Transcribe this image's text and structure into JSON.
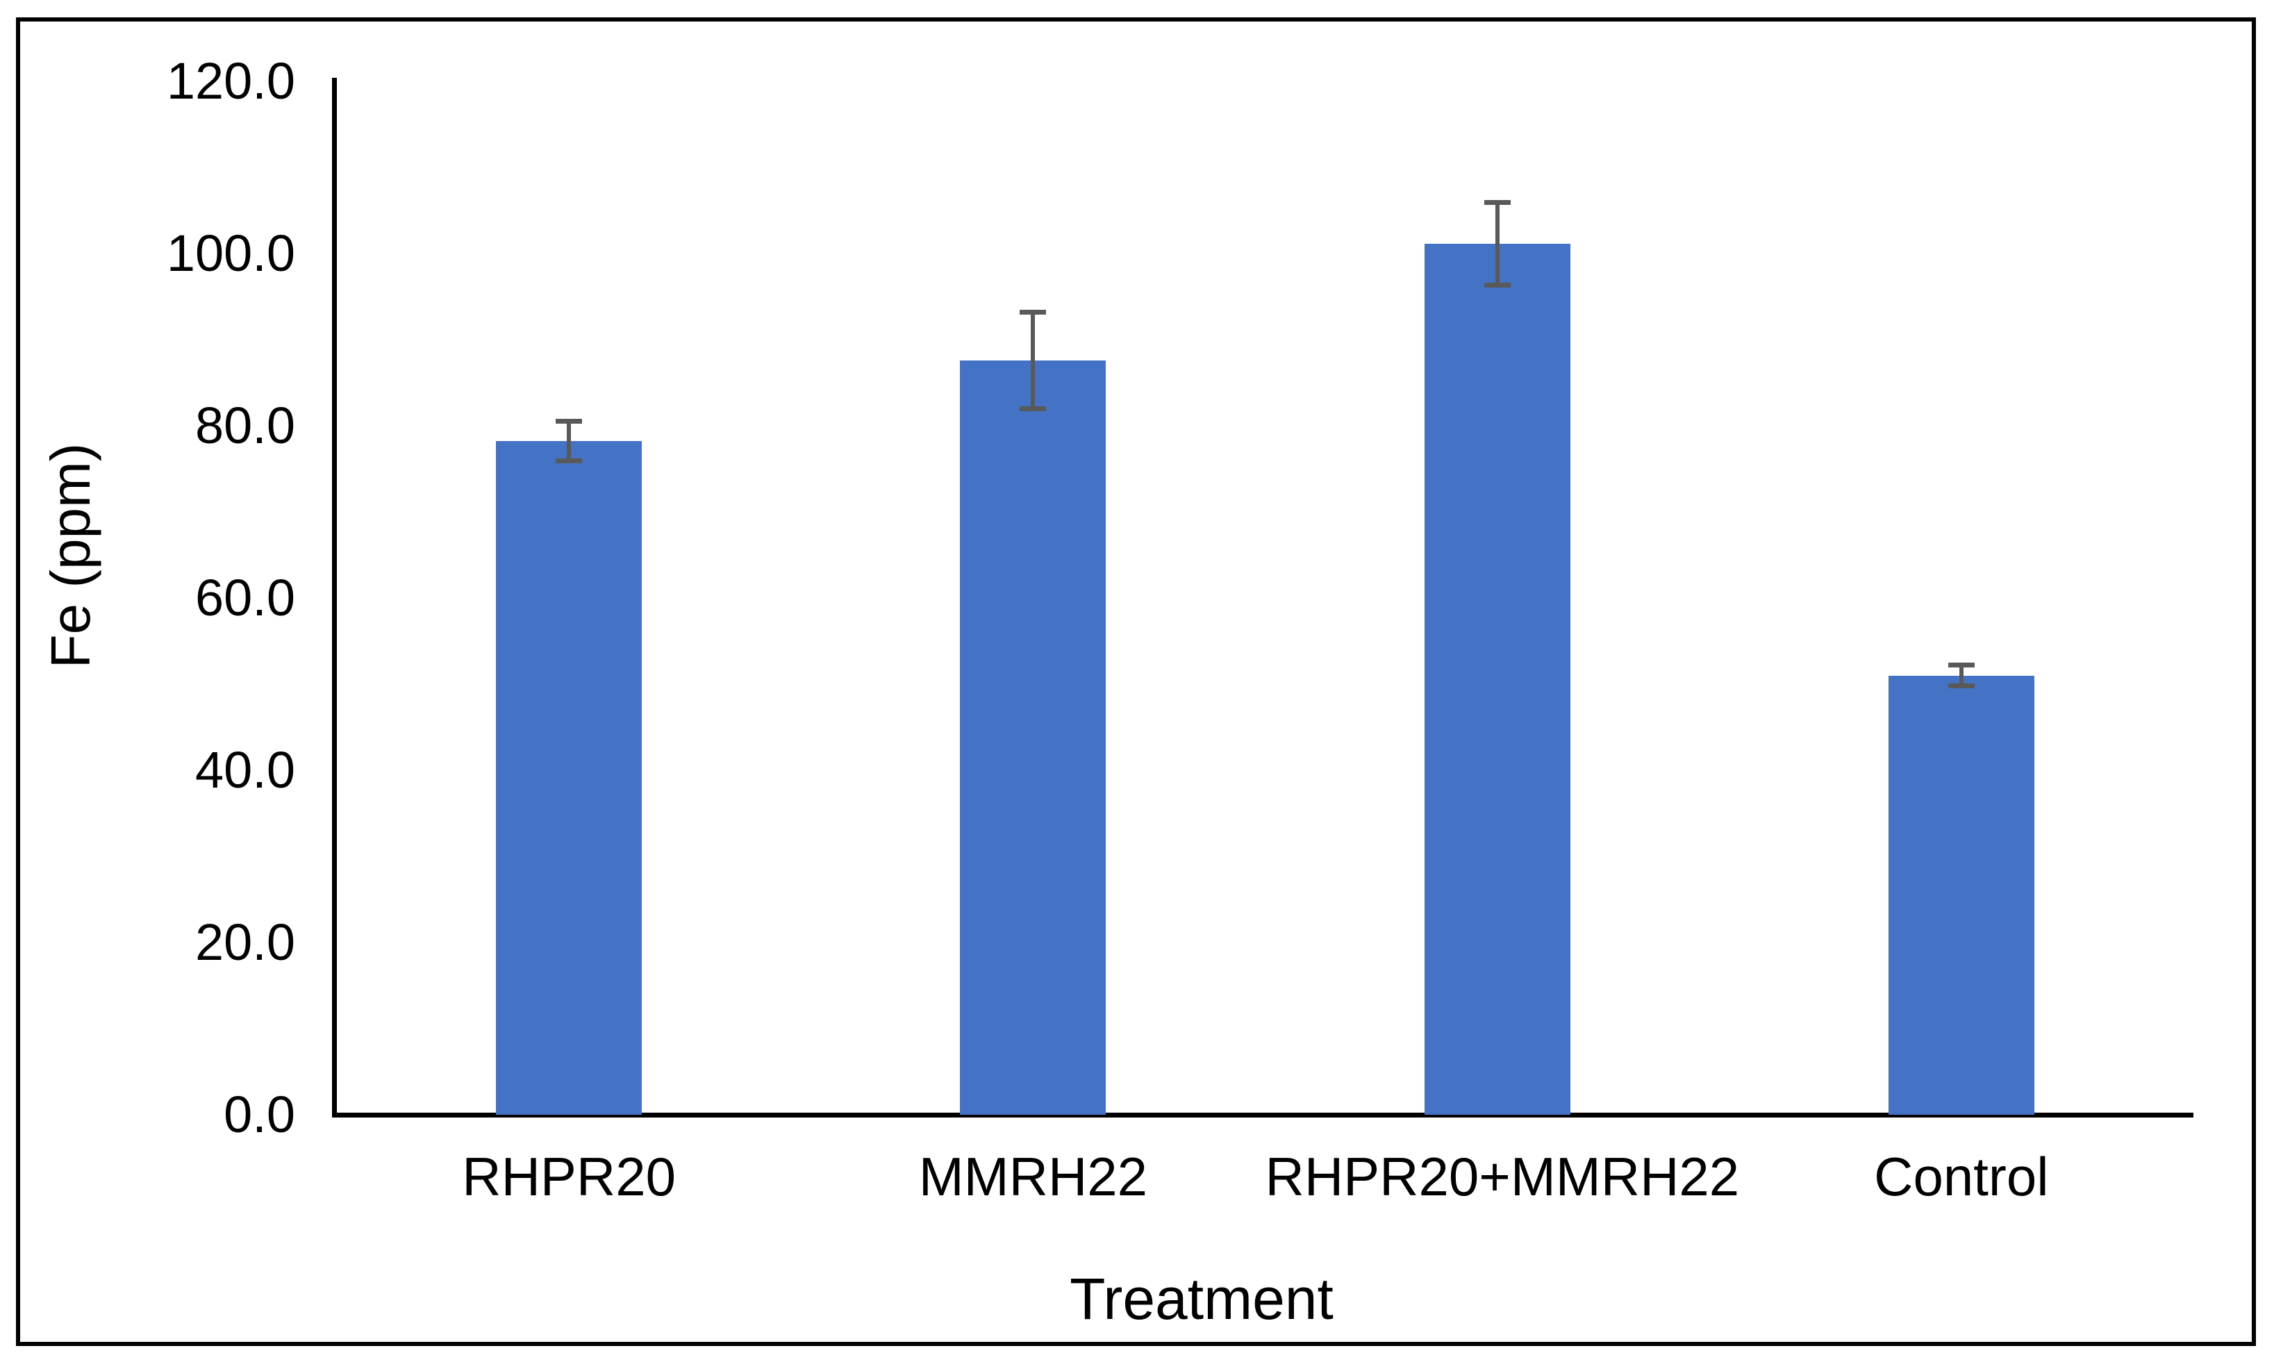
{
  "figure": {
    "background": "#FFFFFF",
    "border_color": "#000000"
  },
  "chart_data": {
    "type": "bar",
    "title": "",
    "xlabel": "Treatment",
    "ylabel": "Fe (ppm)",
    "categories": [
      "RHPR20",
      "MMRH22",
      "RHPR20+MMRH22",
      "Control"
    ],
    "values": [
      78.2,
      87.6,
      101.1,
      51.0
    ],
    "errors": [
      2.3,
      5.6,
      4.8,
      1.2
    ],
    "ylim": [
      0,
      120
    ],
    "yticks": [
      {
        "value": 0,
        "label": "0.0"
      },
      {
        "value": 20,
        "label": "20.0"
      },
      {
        "value": 40,
        "label": "40.0"
      },
      {
        "value": 60,
        "label": "60.0"
      },
      {
        "value": 80,
        "label": "80.0"
      },
      {
        "value": 100,
        "label": "100.0"
      },
      {
        "value": 120,
        "label": "120.0"
      }
    ],
    "grid": false,
    "legend": "none",
    "colors": {
      "bar": "#4472C4",
      "error_bar": "#595959",
      "axis": "#000000",
      "background": "#FFFFFF"
    }
  }
}
